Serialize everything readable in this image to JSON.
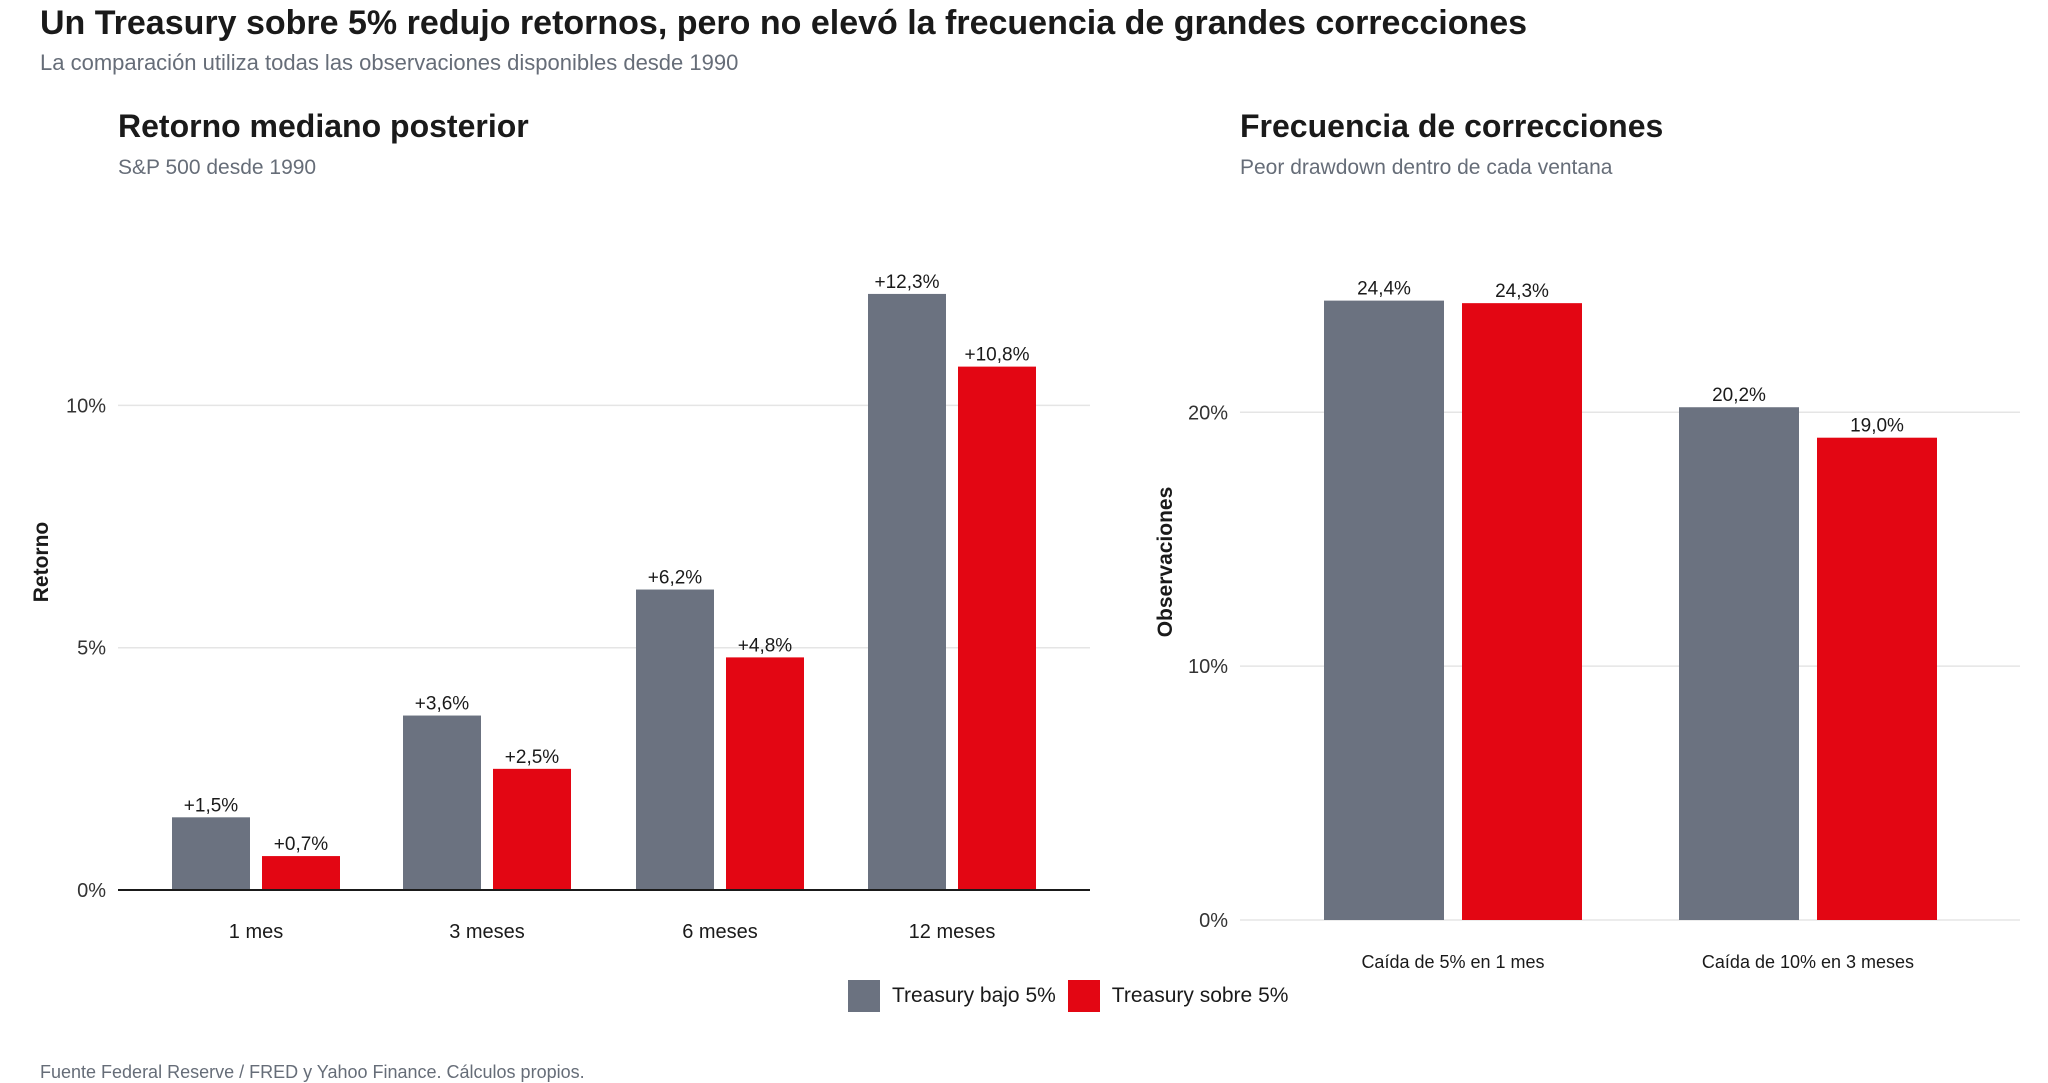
{
  "title": "Un Treasury sobre 5% redujo retornos, pero no elevó la frecuencia de grandes correcciones",
  "subtitle": "La comparación utiliza todas las observaciones disponibles desde 1990",
  "colors": {
    "below": "#6b7280",
    "above": "#e30613",
    "grid": "#e5e5e5",
    "axis": "#1a1a1a"
  },
  "legend": [
    {
      "label": "Treasury bajo 5%",
      "color": "#6b7280"
    },
    {
      "label": "Treasury sobre 5%",
      "color": "#e30613"
    }
  ],
  "source": "Fuente Federal Reserve / FRED y Yahoo Finance. Cálculos propios.",
  "chart_data": [
    {
      "type": "bar",
      "title": "Retorno mediano posterior",
      "subtitle": "S&P 500 desde 1990",
      "ylabel": "Retorno",
      "xlabel": "",
      "ylim": [
        0,
        13
      ],
      "yticks": [
        0,
        5,
        10
      ],
      "ytick_labels": [
        "0%",
        "5%",
        "10%"
      ],
      "categories": [
        "1 mes",
        "3 meses",
        "6 meses",
        "12 meses"
      ],
      "series": [
        {
          "name": "Treasury bajo 5%",
          "values": [
            1.5,
            3.6,
            6.2,
            12.3
          ],
          "labels": [
            "+1,5%",
            "+3,6%",
            "+6,2%",
            "+12,3%"
          ]
        },
        {
          "name": "Treasury sobre 5%",
          "values": [
            0.7,
            2.5,
            4.8,
            10.8
          ],
          "labels": [
            "+0,7%",
            "+2,5%",
            "+4,8%",
            "+10,8%"
          ]
        }
      ],
      "grid": true
    },
    {
      "type": "bar",
      "title": "Frecuencia de correcciones",
      "subtitle": "Peor drawdown dentro de cada ventana",
      "ylabel": "Observaciones",
      "xlabel": "",
      "ylim": [
        0,
        26
      ],
      "yticks": [
        0,
        10,
        20
      ],
      "ytick_labels": [
        "0%",
        "10%",
        "20%"
      ],
      "categories": [
        "Caída de 5% en 1 mes",
        "Caída de 10% en 3 meses"
      ],
      "series": [
        {
          "name": "Treasury bajo 5%",
          "values": [
            24.4,
            20.2
          ],
          "labels": [
            "24,4%",
            "20,2%"
          ]
        },
        {
          "name": "Treasury sobre 5%",
          "values": [
            24.3,
            19.0
          ],
          "labels": [
            "24,3%",
            "19,0%"
          ]
        }
      ],
      "grid": true
    }
  ]
}
